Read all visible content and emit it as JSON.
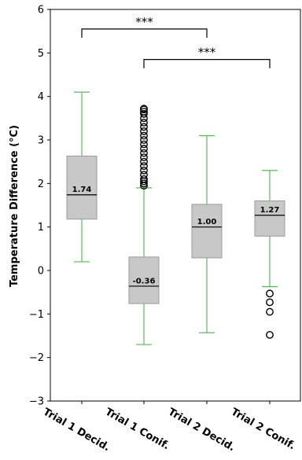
{
  "chart_data": {
    "type": "box",
    "ylabel": "Temperature Difference (°C)",
    "xlabel": "",
    "ylim": [
      -3,
      6
    ],
    "yticks": [
      -3,
      -2,
      -1,
      0,
      1,
      2,
      3,
      4,
      5,
      6
    ],
    "ytick_labels": [
      "−3",
      "−2",
      "−1",
      "0",
      "1",
      "2",
      "3",
      "4",
      "5",
      "6"
    ],
    "grid": false,
    "colors": {
      "box_fill": "#c8c8c8",
      "box_edge": "#9a9a9a",
      "whisker": "#5cb85c",
      "median": "#000000",
      "outlier_edge": "#000000"
    },
    "categories": [
      "Trial 1 Decid.",
      "Trial 1 Conif.",
      "Trial 2 Decid.",
      "Trial 2 Conif."
    ],
    "boxes": [
      {
        "whisker_low": 0.2,
        "q1": 1.18,
        "median": 1.74,
        "q3": 2.63,
        "whisker_high": 4.1,
        "median_label": "1.74",
        "outliers": []
      },
      {
        "whisker_low": -1.7,
        "q1": -0.76,
        "median": -0.36,
        "q3": 0.31,
        "whisker_high": 1.9,
        "median_label": "-0.36",
        "outliers": [
          1.95,
          2.0,
          2.05,
          2.1,
          2.2,
          2.3,
          2.4,
          2.5,
          2.6,
          2.7,
          2.8,
          2.9,
          3.0,
          3.1,
          3.2,
          3.3,
          3.4,
          3.5,
          3.6,
          3.65,
          3.7,
          3.72
        ]
      },
      {
        "whisker_low": -1.43,
        "q1": 0.29,
        "median": 1.0,
        "q3": 1.52,
        "whisker_high": 3.1,
        "median_label": "1.00",
        "outliers": []
      },
      {
        "whisker_low": -0.37,
        "q1": 0.79,
        "median": 1.27,
        "q3": 1.6,
        "whisker_high": 2.3,
        "median_label": "1.27",
        "outliers": [
          -0.53,
          -0.73,
          -0.95,
          -1.48
        ]
      }
    ],
    "significance": [
      {
        "from": 0,
        "to": 2,
        "y": 5.55,
        "tick_drop": 0.2,
        "label": "***"
      },
      {
        "from": 1,
        "to": 3,
        "y": 4.85,
        "tick_drop": 0.2,
        "label": "***"
      }
    ]
  }
}
